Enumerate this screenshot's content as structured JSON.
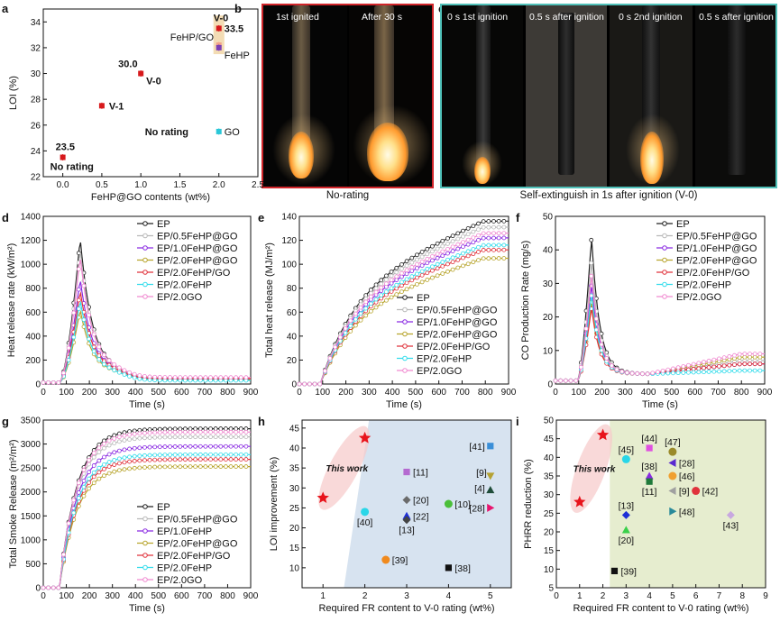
{
  "chart_data": [
    {
      "id": "a",
      "type": "scatter",
      "panel_label": "a",
      "xlabel": "FeHP@GO contents (wt%)",
      "ylabel": "LOI (%)",
      "xlim": [
        -0.25,
        2.5
      ],
      "ylim": [
        22,
        35
      ],
      "xticks": [
        "0.0",
        "0.5",
        "1.0",
        "1.5",
        "2.0",
        "2.5"
      ],
      "xtick_values": [
        0,
        0.5,
        1,
        1.5,
        2,
        2.5
      ],
      "yticks": [
        "22",
        "24",
        "26",
        "28",
        "30",
        "32",
        "34"
      ],
      "ytick_values": [
        22,
        24,
        26,
        28,
        30,
        32,
        34
      ],
      "points": [
        {
          "x": 0.0,
          "y": 23.5,
          "label": "No rating",
          "value_label": "23.5",
          "color": "#d7191c"
        },
        {
          "x": 0.5,
          "y": 27.5,
          "label": "V-1",
          "value_label": "",
          "color": "#d7191c"
        },
        {
          "x": 1.0,
          "y": 30.0,
          "label": "V-0",
          "value_label": "30.0",
          "color": "#d7191c"
        },
        {
          "x": 2.0,
          "y": 33.5,
          "label": "V-0",
          "value_label": "33.5",
          "color": "#d7191c"
        },
        {
          "x": 2.0,
          "y": 32.2,
          "label": "FeHP/GO",
          "value_label": "",
          "color": "#f2a28a"
        },
        {
          "x": 2.0,
          "y": 32.0,
          "label": "FeHP",
          "value_label": "",
          "color": "#7b3fb5"
        },
        {
          "x": 2.0,
          "y": 25.5,
          "label": "GO",
          "value_label": "",
          "color": "#29c7d8"
        }
      ],
      "annotations": {
        "no_rating_left": "No rating"
      }
    },
    {
      "id": "d",
      "type": "line",
      "panel_label": "d",
      "xlabel": "Time (s)",
      "ylabel": "Heat release rate (kW/m²)",
      "xlim": [
        0,
        900
      ],
      "ylim": [
        0,
        1400
      ],
      "xticks": [
        "0",
        "100",
        "200",
        "300",
        "400",
        "500",
        "600",
        "700",
        "800",
        "900"
      ],
      "yticks": [
        "0",
        "200",
        "400",
        "600",
        "800",
        "1000",
        "1200",
        "1400"
      ],
      "series": [
        {
          "name": "EP",
          "color": "#222222",
          "peak": 1220,
          "tail": 40
        },
        {
          "name": "EP/0.5FeHP@GO",
          "color": "#b9b9b9",
          "peak": 1130,
          "tail": 45
        },
        {
          "name": "EP/1.0FeHP@GO",
          "color": "#8a2be2",
          "peak": 880,
          "tail": 40
        },
        {
          "name": "EP/2.0FeHP@GO",
          "color": "#b8a52e",
          "peak": 620,
          "tail": 35
        },
        {
          "name": "EP/2.0FeHP/GO",
          "color": "#e0333c",
          "peak": 780,
          "tail": 45
        },
        {
          "name": "EP/2.0FeHP",
          "color": "#34dceb",
          "peak": 700,
          "tail": 30
        },
        {
          "name": "EP/2.0GO",
          "color": "#f08ad0",
          "peak": 1070,
          "tail": 55
        }
      ]
    },
    {
      "id": "e",
      "type": "line",
      "panel_label": "e",
      "xlabel": "Time (s)",
      "ylabel": "Total heat release (MJ/m²)",
      "xlim": [
        0,
        900
      ],
      "ylim": [
        0,
        140
      ],
      "xticks": [
        "0",
        "100",
        "200",
        "300",
        "400",
        "500",
        "600",
        "700",
        "800",
        "900"
      ],
      "yticks": [
        "0",
        "20",
        "40",
        "60",
        "80",
        "100",
        "120",
        "140"
      ],
      "series": [
        {
          "name": "EP",
          "color": "#222222",
          "final": 136
        },
        {
          "name": "EP/0.5FeHP@GO",
          "color": "#b9b9b9",
          "final": 131
        },
        {
          "name": "EP/1.0FeHP@GO",
          "color": "#8a2be2",
          "final": 122
        },
        {
          "name": "EP/2.0FeHP@GO",
          "color": "#b8a52e",
          "final": 105
        },
        {
          "name": "EP/2.0FeHP/GO",
          "color": "#e0333c",
          "final": 112
        },
        {
          "name": "EP/2.0FeHP",
          "color": "#34dceb",
          "final": 116
        },
        {
          "name": "EP/2.0GO",
          "color": "#f08ad0",
          "final": 126
        }
      ]
    },
    {
      "id": "f",
      "type": "line",
      "panel_label": "f",
      "xlabel": "Time (s)",
      "ylabel": "CO Production Rate (mg/s)",
      "xlim": [
        0,
        900
      ],
      "ylim": [
        0,
        50
      ],
      "xticks": [
        "0",
        "100",
        "200",
        "300",
        "400",
        "500",
        "600",
        "700",
        "800",
        "900"
      ],
      "yticks": [
        "0",
        "10",
        "20",
        "30",
        "40",
        "50"
      ],
      "series": [
        {
          "name": "EP",
          "color": "#222222",
          "peak": 44,
          "tail": 6
        },
        {
          "name": "EP/0.5FeHP@GO",
          "color": "#b9b9b9",
          "peak": 37,
          "tail": 7
        },
        {
          "name": "EP/1.0FeHP@GO",
          "color": "#8a2be2",
          "peak": 30,
          "tail": 6
        },
        {
          "name": "EP/2.0FeHP@GO",
          "color": "#b8a52e",
          "peak": 25,
          "tail": 8
        },
        {
          "name": "EP/2.0FeHP/GO",
          "color": "#e0333c",
          "peak": 23,
          "tail": 6
        },
        {
          "name": "EP/2.0FeHP",
          "color": "#34dceb",
          "peak": 27,
          "tail": 4
        },
        {
          "name": "EP/2.0GO",
          "color": "#f08ad0",
          "peak": 33,
          "tail": 9
        }
      ]
    },
    {
      "id": "g",
      "type": "line",
      "panel_label": "g",
      "xlabel": "Time (s)",
      "ylabel": "Total Smoke Release (m²/m²)",
      "xlim": [
        0,
        900
      ],
      "ylim": [
        0,
        3500
      ],
      "xticks": [
        "0",
        "100",
        "200",
        "300",
        "400",
        "500",
        "600",
        "700",
        "800",
        "900"
      ],
      "yticks": [
        "0",
        "500",
        "1000",
        "1500",
        "2000",
        "2500",
        "3000",
        "3500"
      ],
      "series": [
        {
          "name": "EP",
          "color": "#222222",
          "final": 3320
        },
        {
          "name": "EP/0.5FeHP@GO",
          "color": "#b9b9b9",
          "final": 3150
        },
        {
          "name": "EP/1.0FeHP",
          "color": "#8a2be2",
          "final": 2950
        },
        {
          "name": "EP/2.0FeHP@GO",
          "color": "#b8a52e",
          "final": 2530
        },
        {
          "name": "EP/2.0FeHP/GO",
          "color": "#e0333c",
          "final": 2680
        },
        {
          "name": "EP/2.0FeHP",
          "color": "#34dceb",
          "final": 2780
        },
        {
          "name": "EP/2.0GO",
          "color": "#f08ad0",
          "final": 3250
        }
      ]
    },
    {
      "id": "h",
      "type": "scatter",
      "panel_label": "h",
      "xlabel": "Required FR content to V-0 rating (wt%)",
      "ylabel": "LOI improvement (%)",
      "xlim": [
        0.5,
        5.5
      ],
      "ylim": [
        5,
        47
      ],
      "xticks": [
        "1",
        "2",
        "3",
        "4",
        "5"
      ],
      "xtick_values": [
        1,
        2,
        3,
        4,
        5
      ],
      "yticks": [
        "10",
        "15",
        "20",
        "25",
        "30",
        "35",
        "40",
        "45"
      ],
      "ytick_values": [
        10,
        15,
        20,
        25,
        30,
        35,
        40,
        45
      ],
      "this_work_label": "This work",
      "points": [
        {
          "x": 1.0,
          "y": 27.5,
          "label": "",
          "color": "#e8141c",
          "marker": "star"
        },
        {
          "x": 2.0,
          "y": 42.5,
          "label": "",
          "color": "#e8141c",
          "marker": "star"
        },
        {
          "x": 5.0,
          "y": 40.5,
          "label": "[41]",
          "color": "#3b8fd8",
          "marker": "square"
        },
        {
          "x": 3.0,
          "y": 34.0,
          "label": "[11]",
          "color": "#b46ad0",
          "marker": "square"
        },
        {
          "x": 5.0,
          "y": 33.0,
          "label": "[9]",
          "color": "#b5a233",
          "marker": "triangle-down"
        },
        {
          "x": 5.0,
          "y": 29.5,
          "label": "[4]",
          "color": "#1f4d3a",
          "marker": "triangle"
        },
        {
          "x": 3.0,
          "y": 27.0,
          "label": "[20]",
          "color": "#6b6b6b",
          "marker": "diamond"
        },
        {
          "x": 4.0,
          "y": 26.0,
          "label": "[10]",
          "color": "#4bbf3a",
          "marker": "circle"
        },
        {
          "x": 5.0,
          "y": 25.0,
          "label": "[28]",
          "color": "#e8146e",
          "marker": "triangle-right"
        },
        {
          "x": 2.0,
          "y": 24.0,
          "label": "[40]",
          "color": "#29d6e8",
          "marker": "circle"
        },
        {
          "x": 3.0,
          "y": 23.0,
          "label": "[22]",
          "color": "#1e2fd6",
          "marker": "triangle"
        },
        {
          "x": 3.0,
          "y": 22.0,
          "label": "[13]",
          "color": "#444444",
          "marker": "diamond"
        },
        {
          "x": 2.5,
          "y": 12.0,
          "label": "[39]",
          "color": "#f08a1e",
          "marker": "circle"
        },
        {
          "x": 4.0,
          "y": 10.0,
          "label": "[38]",
          "color": "#111111",
          "marker": "square"
        }
      ]
    },
    {
      "id": "i",
      "type": "scatter",
      "panel_label": "i",
      "xlabel": "Required FR content to V-0 rating (wt%)",
      "ylabel": "PHRR reduction (%)",
      "xlim": [
        0,
        9
      ],
      "ylim": [
        5,
        50
      ],
      "xticks": [
        "0",
        "1",
        "2",
        "3",
        "4",
        "5",
        "6",
        "7",
        "8",
        "9"
      ],
      "xtick_values": [
        0,
        1,
        2,
        3,
        4,
        5,
        6,
        7,
        8,
        9
      ],
      "yticks": [
        "5",
        "10",
        "15",
        "20",
        "25",
        "30",
        "35",
        "40",
        "45",
        "50"
      ],
      "ytick_values": [
        5,
        10,
        15,
        20,
        25,
        30,
        35,
        40,
        45,
        50
      ],
      "this_work_label": "This work",
      "points": [
        {
          "x": 1.0,
          "y": 28.0,
          "label": "",
          "color": "#e8141c",
          "marker": "star"
        },
        {
          "x": 2.0,
          "y": 46.0,
          "label": "",
          "color": "#e8141c",
          "marker": "star"
        },
        {
          "x": 3.0,
          "y": 39.5,
          "label": "[45]",
          "color": "#29d6e8",
          "marker": "circle"
        },
        {
          "x": 4.0,
          "y": 42.5,
          "label": "[44]",
          "color": "#e050e0",
          "marker": "square"
        },
        {
          "x": 5.0,
          "y": 41.5,
          "label": "[47]",
          "color": "#9a8a2a",
          "marker": "circle"
        },
        {
          "x": 5.0,
          "y": 38.5,
          "label": "[28]",
          "color": "#5a2ad0",
          "marker": "triangle-left"
        },
        {
          "x": 4.0,
          "y": 35.0,
          "label": "[38]",
          "color": "#8a2be2",
          "marker": "triangle"
        },
        {
          "x": 5.0,
          "y": 35.0,
          "label": "[46]",
          "color": "#f0a030",
          "marker": "circle"
        },
        {
          "x": 4.0,
          "y": 33.5,
          "label": "[11]",
          "color": "#1f7a3a",
          "marker": "square"
        },
        {
          "x": 5.0,
          "y": 31.0,
          "label": "[9]",
          "color": "#a0a0a0",
          "marker": "triangle-left"
        },
        {
          "x": 6.0,
          "y": 31.0,
          "label": "[42]",
          "color": "#e0333c",
          "marker": "circle"
        },
        {
          "x": 3.0,
          "y": 24.5,
          "label": "[13]",
          "color": "#1e2fd6",
          "marker": "diamond"
        },
        {
          "x": 5.0,
          "y": 25.5,
          "label": "[48]",
          "color": "#2a8a9a",
          "marker": "triangle-right"
        },
        {
          "x": 7.5,
          "y": 24.5,
          "label": "[43]",
          "color": "#c8a8e0",
          "marker": "diamond"
        },
        {
          "x": 3.0,
          "y": 20.5,
          "label": "[20]",
          "color": "#3ad04a",
          "marker": "triangle"
        },
        {
          "x": 2.5,
          "y": 9.5,
          "label": "[39]",
          "color": "#111111",
          "marker": "square"
        }
      ]
    }
  ],
  "photos": {
    "b": {
      "panel_label": "b",
      "labels": [
        "1st ignited",
        "After 30 s"
      ],
      "caption": "No-rating",
      "border_color": "#d0252a"
    },
    "c": {
      "panel_label": "c",
      "labels": [
        "0 s 1st ignition",
        "0.5 s after ignition",
        "0 s 2nd ignition",
        "0.5 s after ignition"
      ],
      "caption": "Self-extinguish in 1s after ignition (V-0)",
      "border_color": "#4fc0b8"
    }
  }
}
